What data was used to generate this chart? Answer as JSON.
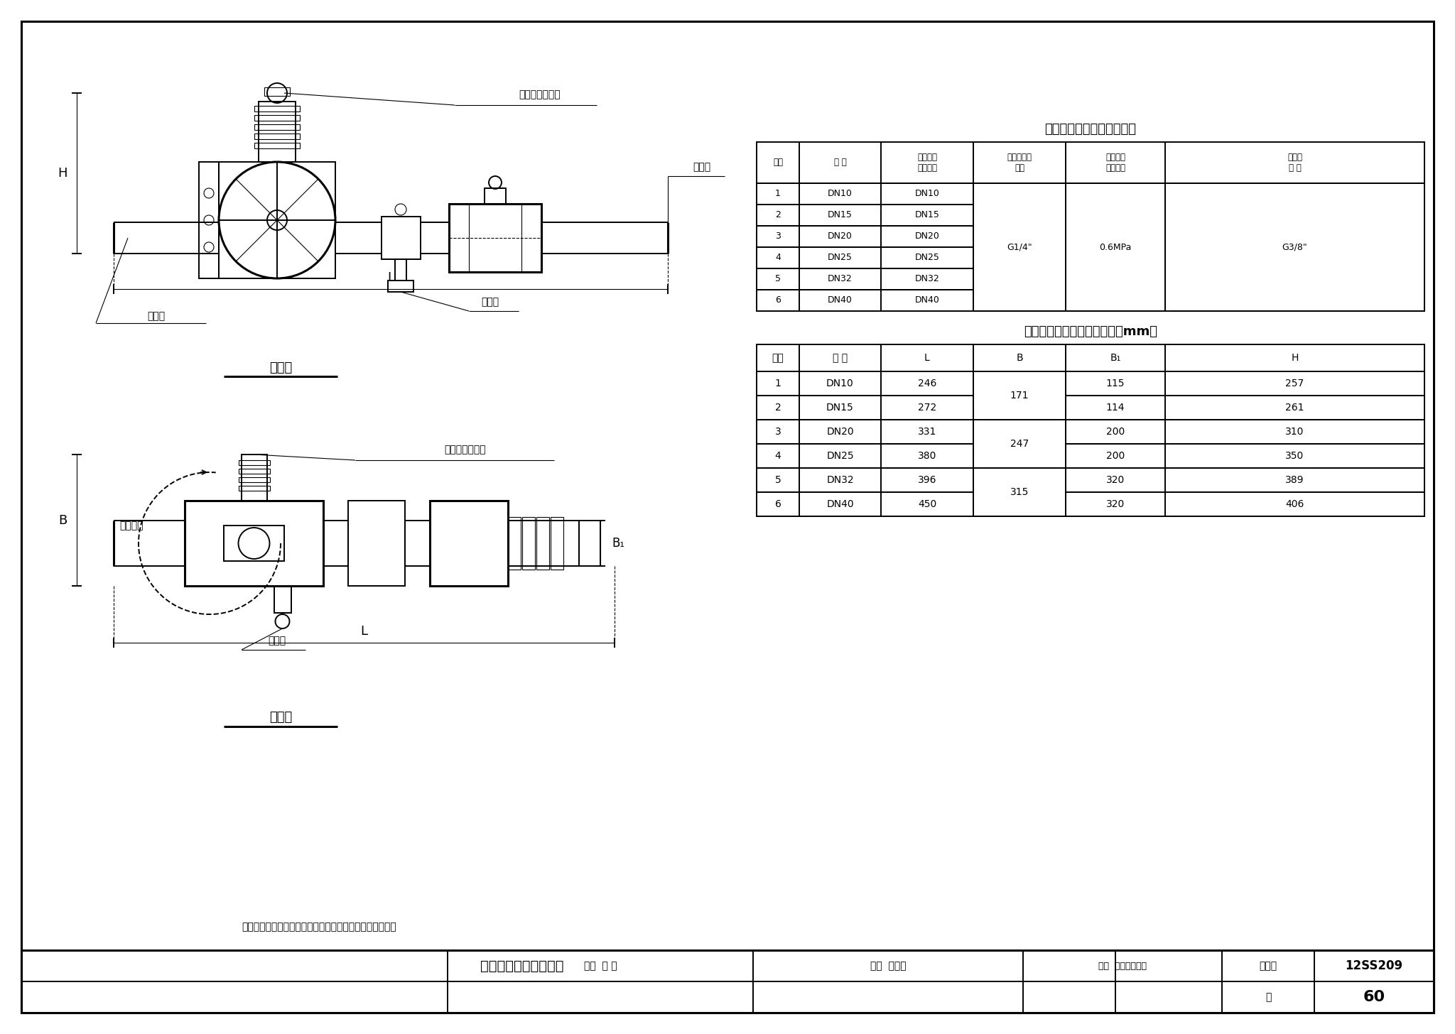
{
  "bg_color": "#ffffff",
  "table1_title": "进口分区控制阀技术参数表",
  "table1_headers": [
    "序号",
    "规 格",
    "进出水口\n公称尺寸",
    "压缩空气管\n接口",
    "压缩空气\n供气压力",
    "测试阀\n规 格"
  ],
  "table1_rows": [
    [
      "1",
      "DN10",
      "DN10",
      "",
      "",
      ""
    ],
    [
      "2",
      "DN15",
      "DN15",
      "",
      "",
      ""
    ],
    [
      "3",
      "DN20",
      "DN20",
      "",
      "",
      ""
    ],
    [
      "4",
      "DN25",
      "DN25",
      "",
      "",
      ""
    ],
    [
      "5",
      "DN32",
      "DN32",
      "",
      "",
      ""
    ],
    [
      "6",
      "DN40",
      "DN40",
      "",
      "",
      ""
    ]
  ],
  "table1_merged_col3": "G1/4\"",
  "table1_merged_col4": "0.6MPa",
  "table1_merged_col5": "G3/8\"",
  "table2_title": "进口分区控制阀外形尺寸表（mm）",
  "table2_headers": [
    "序号",
    "规 格",
    "L",
    "B",
    "B₁",
    "H"
  ],
  "table2_rows": [
    [
      "1",
      "DN10",
      "246",
      "171",
      "115",
      "257"
    ],
    [
      "2",
      "DN15",
      "272",
      "171",
      "114",
      "261"
    ],
    [
      "3",
      "DN20",
      "331",
      "247",
      "200",
      "310"
    ],
    [
      "4",
      "DN25",
      "380",
      "247",
      "200",
      "350"
    ],
    [
      "5",
      "DN32",
      "396",
      "315",
      "320",
      "389"
    ],
    [
      "6",
      "DN40",
      "450",
      "315",
      "320",
      "406"
    ]
  ],
  "table2_merge_B": [
    [
      "0",
      "2",
      "171"
    ],
    [
      "2",
      "4",
      "247"
    ],
    [
      "4",
      "6",
      "315"
    ]
  ],
  "main_title": "进口分区控制阀外形图",
  "figure_set_label": "图集号",
  "figure_number": "12SS209",
  "page_label": "页",
  "page_number": "60",
  "label_review": "审核",
  "label_review_name": "胡 明",
  "label_check": "校对",
  "label_check_name": "俞志根",
  "label_design": "设计",
  "label_design_name": "田扬楼田均楼",
  "label_air_port": "压缩空气管接口",
  "label_test_valve": "测试阀",
  "label_outlet": "出水口",
  "label_inlet": "进水口",
  "label_rotate": "旋转方向",
  "label_front": "前视图",
  "label_top": "平面图",
  "label_note": "说明：各种规格分区控制阀进出水口连接方式均为管螺纹。"
}
